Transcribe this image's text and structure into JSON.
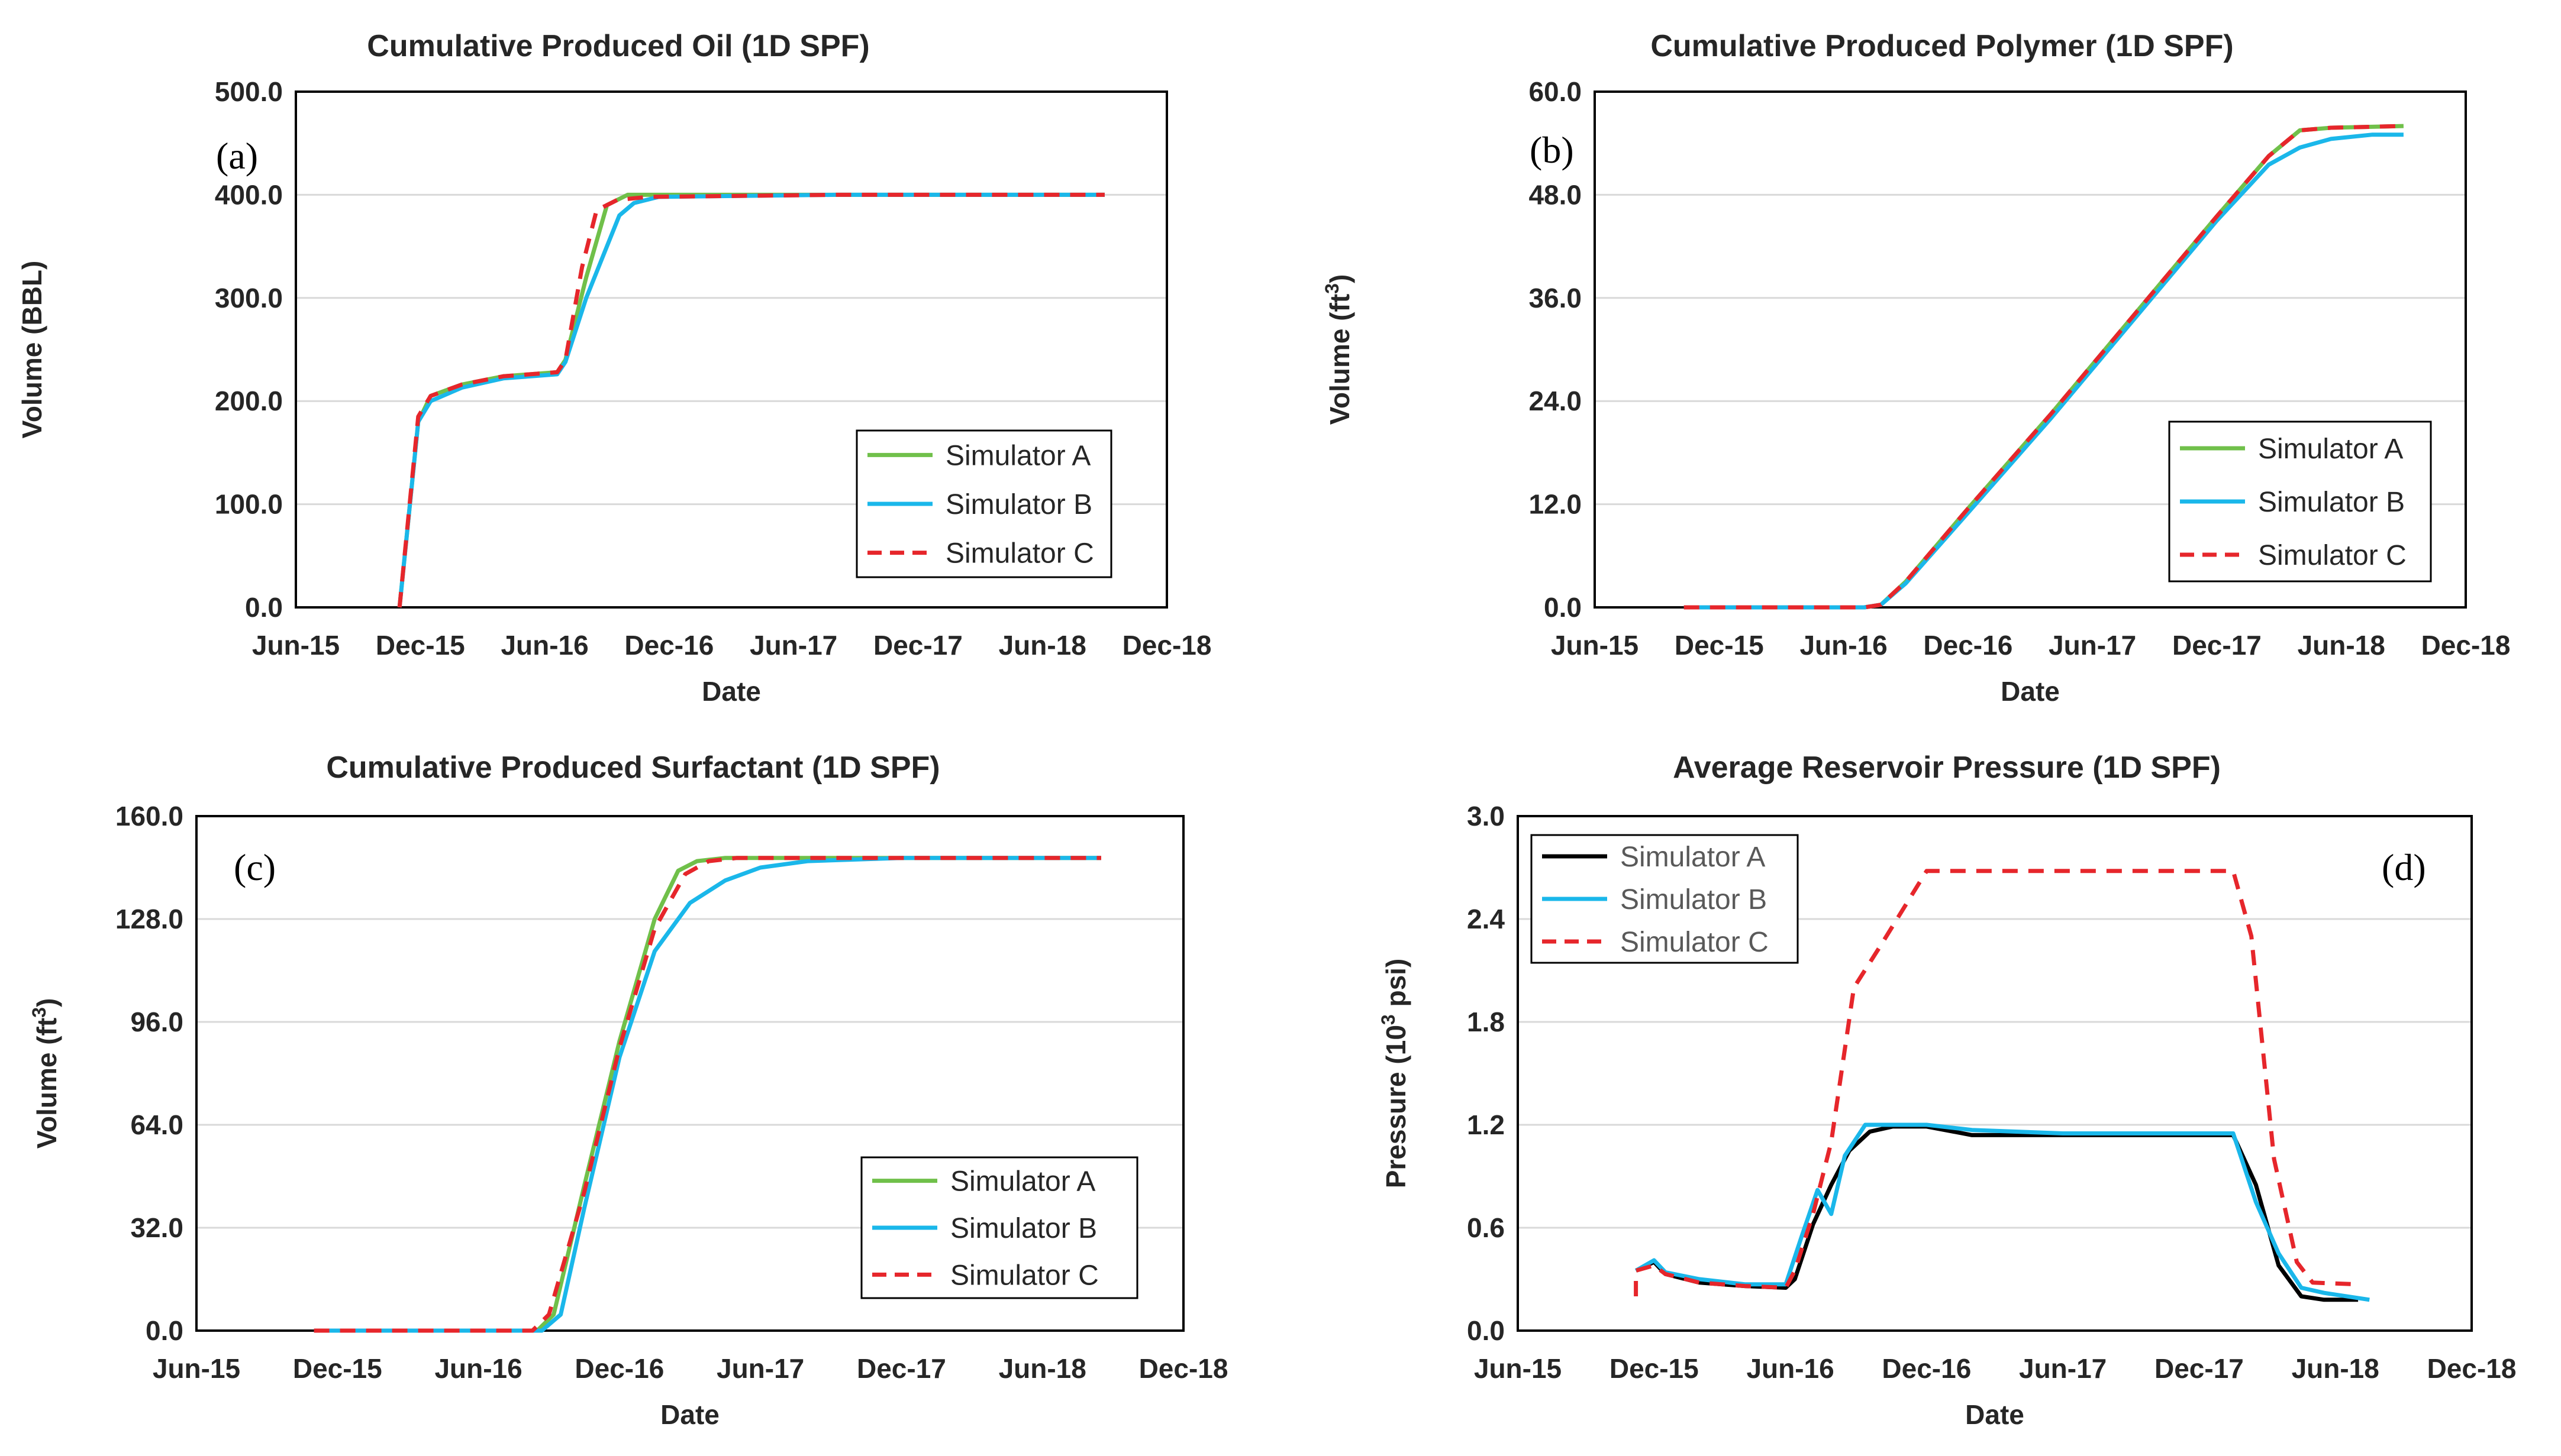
{
  "chart_data": [
    {
      "type": "line",
      "title": "Cumulative Produced Oil (1D SPF)",
      "panel_label": "(a)",
      "xlabel": "Date",
      "ylabel": "Volume (BBL)",
      "ylabel_sup": "",
      "ylabel_after": "",
      "xlim": [
        0,
        42
      ],
      "x_ticks": [
        0,
        6,
        12,
        18,
        24,
        30,
        36,
        42
      ],
      "x_tick_labels": [
        "Jun-15",
        "Dec-15",
        "Jun-16",
        "Dec-16",
        "Jun-17",
        "Dec-17",
        "Jun-18",
        "Dec-18"
      ],
      "ylim": [
        0,
        500
      ],
      "y_ticks": [
        0,
        100,
        200,
        300,
        400,
        500
      ],
      "y_tick_labels": [
        "0.0",
        "100.0",
        "200.0",
        "300.0",
        "400.0",
        "500.0"
      ],
      "grid": true,
      "legend_position": "bottom-right",
      "series": [
        {
          "name": "Simulator A",
          "color": "#70c04a",
          "dash": "solid",
          "x": [
            5.0,
            5.9,
            6.5,
            8,
            10,
            12.6,
            13.0,
            14.0,
            15.0,
            16.0,
            18,
            26,
            39.0
          ],
          "y": [
            0,
            180,
            205,
            216,
            224,
            228,
            240,
            320,
            390,
            400,
            400,
            400,
            400
          ]
        },
        {
          "name": "Simulator B",
          "color": "#1ab7ea",
          "dash": "solid",
          "x": [
            5.0,
            5.9,
            6.5,
            8,
            10,
            12.6,
            13.0,
            14.0,
            15.0,
            15.6,
            16.3,
            17.5,
            26,
            39.0
          ],
          "y": [
            0,
            180,
            200,
            213,
            222,
            226,
            238,
            300,
            350,
            380,
            392,
            398,
            400,
            400
          ]
        },
        {
          "name": "Simulator C",
          "color": "#e6262b",
          "dash": "dashed",
          "x": [
            5.0,
            5.9,
            6.5,
            8,
            10,
            12.6,
            13.0,
            13.8,
            14.5,
            15.5,
            17.0,
            26,
            39.0
          ],
          "y": [
            0,
            185,
            205,
            216,
            224,
            228,
            240,
            330,
            385,
            395,
            398,
            400,
            400
          ]
        }
      ]
    },
    {
      "type": "line",
      "title": "Cumulative Produced Polymer (1D SPF)",
      "panel_label": "(b)",
      "xlabel": "Date",
      "ylabel": "Volume (ft",
      "ylabel_sup": "3",
      "ylabel_after": ")",
      "xlim": [
        0,
        42
      ],
      "x_ticks": [
        0,
        6,
        12,
        18,
        24,
        30,
        36,
        42
      ],
      "x_tick_labels": [
        "Jun-15",
        "Dec-15",
        "Jun-16",
        "Dec-16",
        "Jun-17",
        "Dec-17",
        "Jun-18",
        "Dec-18"
      ],
      "ylim": [
        0,
        60
      ],
      "y_ticks": [
        0,
        12,
        24,
        36,
        48,
        60
      ],
      "y_tick_labels": [
        "0.0",
        "12.0",
        "24.0",
        "36.0",
        "48.0",
        "60.0"
      ],
      "grid": true,
      "legend_position": "bottom-right",
      "series": [
        {
          "name": "Simulator A",
          "color": "#70c04a",
          "dash": "solid",
          "x": [
            4.3,
            13.0,
            13.8,
            15.0,
            18,
            22,
            26,
            30,
            32.5,
            34.0,
            35.5,
            39.0
          ],
          "y": [
            0,
            0,
            0.3,
            3,
            11.5,
            22.5,
            34,
            45.5,
            52.5,
            55.5,
            55.8,
            56
          ]
        },
        {
          "name": "Simulator B",
          "color": "#1ab7ea",
          "dash": "solid",
          "x": [
            4.3,
            13.0,
            13.8,
            15.0,
            18,
            22,
            26,
            30,
            32.5,
            34.0,
            35.5,
            37.5,
            39.0
          ],
          "y": [
            0,
            0,
            0.3,
            2.8,
            11,
            22,
            33.5,
            45,
            51.5,
            53.5,
            54.5,
            55,
            55
          ]
        },
        {
          "name": "Simulator C",
          "color": "#e6262b",
          "dash": "dashed",
          "x": [
            4.3,
            13.0,
            13.8,
            15.0,
            18,
            22,
            26,
            30,
            32.5,
            34.0,
            35.5,
            39.0
          ],
          "y": [
            0,
            0,
            0.3,
            3,
            11.5,
            22.5,
            34,
            45.5,
            52.5,
            55.5,
            55.8,
            56
          ]
        }
      ]
    },
    {
      "type": "line",
      "title": "Cumulative Produced Surfactant (1D SPF)",
      "panel_label": "(c)",
      "xlabel": "Date",
      "ylabel": "Volume (ft",
      "ylabel_sup": "3",
      "ylabel_after": ")",
      "xlim": [
        0,
        42
      ],
      "x_ticks": [
        0,
        6,
        12,
        18,
        24,
        30,
        36,
        42
      ],
      "x_tick_labels": [
        "Jun-15",
        "Dec-15",
        "Jun-16",
        "Dec-16",
        "Jun-17",
        "Dec-17",
        "Jun-18",
        "Dec-18"
      ],
      "ylim": [
        0,
        160
      ],
      "y_ticks": [
        0,
        32,
        64,
        96,
        128,
        160
      ],
      "y_tick_labels": [
        "0.0",
        "32.0",
        "64.0",
        "96.0",
        "128.0",
        "160.0"
      ],
      "grid": true,
      "legend_position": "bottom-right",
      "series": [
        {
          "name": "Simulator A",
          "color": "#70c04a",
          "dash": "solid",
          "x": [
            5.0,
            14.5,
            15.2,
            16.5,
            18.0,
            19.5,
            20.5,
            21.3,
            22.5,
            30,
            38.5
          ],
          "y": [
            0,
            0,
            5,
            45,
            90,
            128,
            143,
            146,
            147,
            147,
            147
          ]
        },
        {
          "name": "Simulator B",
          "color": "#1ab7ea",
          "dash": "solid",
          "x": [
            5.0,
            14.7,
            15.5,
            16.5,
            18.0,
            19.5,
            21.0,
            22.5,
            24.0,
            26.0,
            30,
            38.5
          ],
          "y": [
            0,
            0,
            5,
            38,
            85,
            118,
            133,
            140,
            144,
            146,
            147,
            147
          ]
        },
        {
          "name": "Simulator C",
          "color": "#e6262b",
          "dash": "dashed",
          "x": [
            5.0,
            14.3,
            15.0,
            16.5,
            18.0,
            19.5,
            20.8,
            21.8,
            23,
            30,
            38.5
          ],
          "y": [
            0,
            0,
            5,
            43,
            88,
            125,
            142,
            146,
            147,
            147,
            147
          ]
        }
      ]
    },
    {
      "type": "line",
      "title": "Average Reservoir Pressure (1D SPF)",
      "panel_label": "(d)",
      "xlabel": "Date",
      "ylabel": "Pressure (10",
      "ylabel_sup": "3",
      "ylabel_after": " psi)",
      "xlim": [
        0,
        42
      ],
      "x_ticks": [
        0,
        6,
        12,
        18,
        24,
        30,
        36,
        42
      ],
      "x_tick_labels": [
        "Jun-15",
        "Dec-15",
        "Jun-16",
        "Dec-16",
        "Jun-17",
        "Dec-17",
        "Jun-18",
        "Dec-18"
      ],
      "ylim": [
        0,
        3.0
      ],
      "y_ticks": [
        0,
        0.6,
        1.2,
        1.8,
        2.4,
        3.0
      ],
      "y_tick_labels": [
        "0.0",
        "0.6",
        "1.2",
        "1.8",
        "2.4",
        "3.0"
      ],
      "grid": true,
      "legend_position": "top-left",
      "series": [
        {
          "name": "Simulator A",
          "color": "#000000",
          "dash": "solid",
          "x": [
            5.2,
            6.0,
            6.5,
            8,
            10,
            11.8,
            12.2,
            13.0,
            13.8,
            14.6,
            15.5,
            16.5,
            18.0,
            20.0,
            24,
            31.5,
            32.5,
            33.5,
            34.5,
            35.5,
            37.0
          ],
          "y": [
            0.35,
            0.4,
            0.33,
            0.28,
            0.26,
            0.25,
            0.3,
            0.62,
            0.85,
            1.05,
            1.16,
            1.19,
            1.19,
            1.14,
            1.14,
            1.14,
            0.85,
            0.38,
            0.2,
            0.18,
            0.18
          ]
        },
        {
          "name": "Simulator B",
          "color": "#1ab7ea",
          "dash": "solid",
          "x": [
            5.2,
            6.0,
            6.5,
            8,
            10,
            11.8,
            12.5,
            13.2,
            13.8,
            14.4,
            15.3,
            16.3,
            18.0,
            20.0,
            24,
            31.5,
            32.5,
            33.5,
            34.5,
            35.5,
            37.5
          ],
          "y": [
            0.35,
            0.41,
            0.34,
            0.3,
            0.27,
            0.27,
            0.55,
            0.82,
            0.68,
            1.02,
            1.2,
            1.2,
            1.2,
            1.17,
            1.15,
            1.15,
            0.75,
            0.45,
            0.25,
            0.22,
            0.18
          ]
        },
        {
          "name": "Simulator C",
          "color": "#e6262b",
          "dash": "dashed",
          "x": [
            5.2,
            5.2,
            6.0,
            6.5,
            8,
            10,
            11.8,
            12.2,
            13.0,
            13.8,
            14.8,
            16.0,
            18.0,
            31.5,
            32.3,
            33.3,
            34.3,
            35.0,
            37.0
          ],
          "y": [
            0.2,
            0.35,
            0.38,
            0.33,
            0.28,
            0.26,
            0.25,
            0.35,
            0.68,
            1.1,
            2.0,
            2.25,
            2.68,
            2.68,
            2.3,
            1.0,
            0.4,
            0.28,
            0.27
          ]
        }
      ]
    }
  ]
}
